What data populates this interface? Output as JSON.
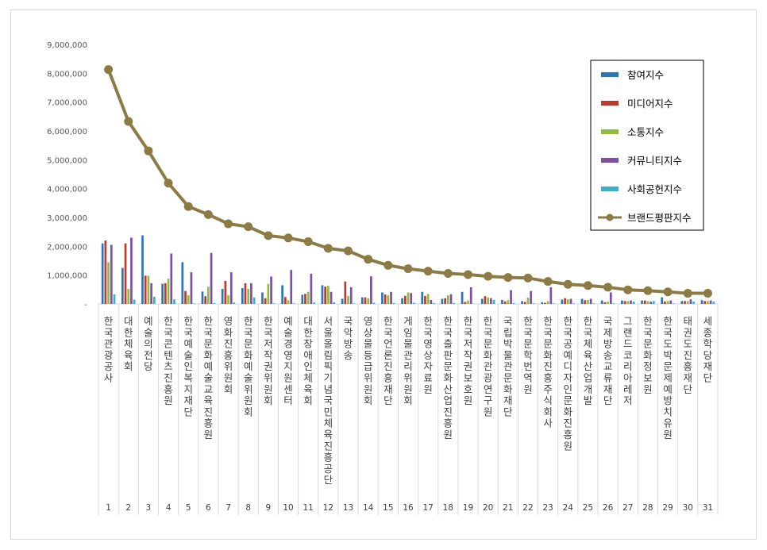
{
  "chart_data": {
    "type": "bar",
    "title": "",
    "xlabel": "",
    "ylabel": "",
    "ylim": [
      0,
      9000000
    ],
    "yticks": [
      "-",
      "1,000,000",
      "2,000,000",
      "3,000,000",
      "4,000,000",
      "5,000,000",
      "6,000,000",
      "7,000,000",
      "8,000,000",
      "9,000,000"
    ],
    "grid": false,
    "legend_position": "top-right",
    "categories": [
      "한국관광공사",
      "대한체육회",
      "예술의전당",
      "한국콘텐츠진흥원",
      "한국예술인복지재단",
      "한국문화예술교육진흥원",
      "영화진흥위원회",
      "한국문화예술위원회",
      "한국저작권위원회",
      "예술경영지원센터",
      "대한장애인체육회",
      "서울올림픽기념국민체육진흥공단",
      "국악방송",
      "영상물등급위원회",
      "한국언론진흥재단",
      "게임물관리위원회",
      "한국영상자료원",
      "한국출판문화산업진흥원",
      "한국저작권보호원",
      "한국문화관광연구원",
      "국립박물관문화재단",
      "한국문학번역원",
      "한국문화진흥주식회사",
      "한국공예디자인문화진흥원",
      "한국체육산업개발",
      "국제방송교류재단",
      "그랜드코리아레저",
      "한국문화정보원",
      "한국도박문제예방치유원",
      "태권도진흥재단",
      "세종학당재단"
    ],
    "ranks": [
      "1",
      "2",
      "3",
      "4",
      "5",
      "6",
      "7",
      "8",
      "9",
      "10",
      "11",
      "12",
      "13",
      "14",
      "15",
      "16",
      "17",
      "18",
      "19",
      "20",
      "21",
      "22",
      "23",
      "24",
      "25",
      "26",
      "27",
      "28",
      "29",
      "30",
      "31"
    ],
    "series": [
      {
        "name": "참여지수",
        "kind": "bar",
        "color": "#2e75b6",
        "values": [
          2100000,
          1250000,
          2380000,
          700000,
          1450000,
          430000,
          520000,
          550000,
          400000,
          650000,
          320000,
          650000,
          180000,
          230000,
          400000,
          200000,
          420000,
          180000,
          420000,
          180000,
          140000,
          100000,
          60000,
          150000,
          180000,
          120000,
          120000,
          120000,
          230000,
          100000,
          130000
        ]
      },
      {
        "name": "미디어지수",
        "kind": "bar",
        "color": "#c0392b",
        "values": [
          2200000,
          2100000,
          980000,
          720000,
          450000,
          270000,
          800000,
          720000,
          200000,
          240000,
          350000,
          600000,
          780000,
          230000,
          330000,
          280000,
          280000,
          200000,
          70000,
          270000,
          90000,
          70000,
          40000,
          200000,
          130000,
          60000,
          100000,
          120000,
          90000,
          100000,
          100000
        ]
      },
      {
        "name": "소통지수",
        "kind": "bar",
        "color": "#8fbc3f",
        "values": [
          1450000,
          520000,
          980000,
          880000,
          300000,
          600000,
          310000,
          520000,
          700000,
          130000,
          420000,
          630000,
          280000,
          200000,
          300000,
          400000,
          350000,
          300000,
          120000,
          230000,
          130000,
          220000,
          100000,
          160000,
          140000,
          80000,
          100000,
          100000,
          100000,
          100000,
          100000
        ]
      },
      {
        "name": "커뮤니티지수",
        "kind": "bar",
        "color": "#7f4fa5",
        "values": [
          2050000,
          2300000,
          720000,
          1750000,
          1100000,
          1770000,
          1100000,
          720000,
          950000,
          1180000,
          1050000,
          420000,
          580000,
          960000,
          420000,
          380000,
          140000,
          340000,
          580000,
          200000,
          480000,
          450000,
          580000,
          180000,
          180000,
          400000,
          120000,
          80000,
          120000,
          160000,
          120000
        ]
      },
      {
        "name": "사회공헌지수",
        "kind": "bar",
        "color": "#3ab0c8",
        "values": [
          330000,
          150000,
          250000,
          160000,
          20000,
          30000,
          50000,
          230000,
          20000,
          20000,
          50000,
          60000,
          20000,
          40000,
          30000,
          40000,
          30000,
          30000,
          10000,
          140000,
          30000,
          20000,
          20000,
          20000,
          20000,
          20000,
          80000,
          100000,
          20000,
          80000,
          80000
        ]
      },
      {
        "name": "브랜드평판지수",
        "kind": "line",
        "color": "#8c7b45",
        "values": [
          8130000,
          6330000,
          5310000,
          4190000,
          3380000,
          3100000,
          2780000,
          2680000,
          2370000,
          2290000,
          2160000,
          1930000,
          1840000,
          1550000,
          1340000,
          1220000,
          1140000,
          1060000,
          1020000,
          960000,
          920000,
          900000,
          780000,
          680000,
          640000,
          580000,
          490000,
          460000,
          420000,
          370000,
          370000
        ]
      }
    ]
  }
}
